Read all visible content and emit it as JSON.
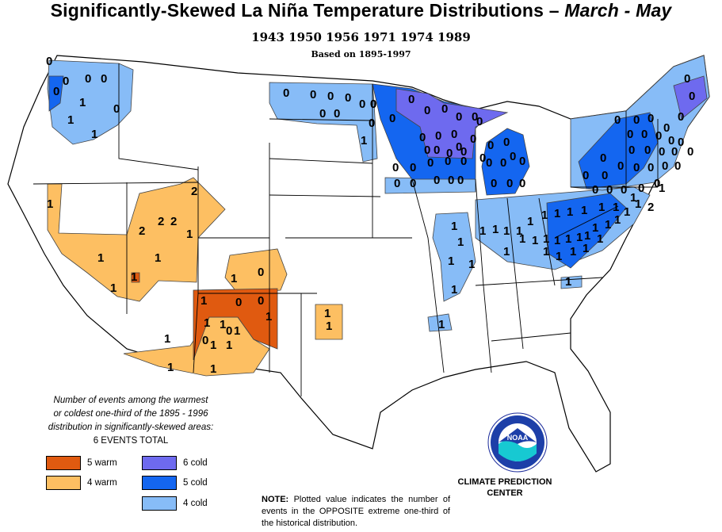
{
  "header": {
    "title_main": "Significantly-Skewed La Niña Temperature Distributions  –",
    "title_season": "March - May",
    "years": "1943 1950 1956 1971 1974 1989",
    "basis": "Based on 1895-1997"
  },
  "legend": {
    "caption_lines": [
      "Number of events among the warmest",
      "or coldest one-third of the 1895 - 1996",
      "distribution in significantly-skewed areas:"
    ],
    "total": "6  EVENTS TOTAL",
    "items": [
      {
        "label": "5 warm",
        "color": "#e05a10"
      },
      {
        "label": "4 warm",
        "color": "#fdbf62"
      },
      {
        "label": "6 cold",
        "color": "#6e6aef"
      },
      {
        "label": "5 cold",
        "color": "#1466f0"
      },
      {
        "label": "4 cold",
        "color": "#87bcf7"
      }
    ]
  },
  "credit": {
    "line1": "CLIMATE PREDICTION",
    "line2": "CENTER",
    "logo_text": "NOAA"
  },
  "note": {
    "label": "NOTE:",
    "text": " Plotted value indicates the number of events in the OPPOSITE extreme one-third of the historical distribution."
  },
  "map": {
    "colors": {
      "land": "#ffffff",
      "border": "#000000",
      "division_border": "#6b6b6b"
    },
    "values": [
      {
        "v": "0",
        "cat": "4 cold"
      },
      {
        "v": "1",
        "cat": "4 cold"
      },
      {
        "v": "0",
        "cat": "5 cold"
      },
      {
        "v": "0",
        "cat": "6 cold"
      },
      {
        "v": "1",
        "cat": "4 warm"
      },
      {
        "v": "2",
        "cat": "4 warm"
      },
      {
        "v": "1",
        "cat": "5 warm"
      },
      {
        "v": "0",
        "cat": "5 warm"
      }
    ],
    "labels": {
      "pnw": [
        "0",
        "0",
        "0",
        "0",
        "0",
        "1",
        "0",
        "1",
        "1"
      ],
      "north_plains": [
        "0",
        "0",
        "0",
        "0",
        "0",
        "0",
        "0",
        "0",
        "0",
        "1"
      ],
      "great_lakes": [
        "0",
        "0",
        "0",
        "0",
        "0",
        "0",
        "0",
        "0",
        "0",
        "0",
        "0",
        "0",
        "0",
        "0",
        "0",
        "0",
        "0",
        "0",
        "0",
        "0",
        "0",
        "0",
        "0",
        "0",
        "0",
        "0",
        "0",
        "0",
        "0",
        "0",
        "0",
        "0",
        "0",
        "0",
        "0",
        "0",
        "0"
      ],
      "northeast": [
        "0",
        "0",
        "0",
        "0",
        "0",
        "0",
        "0",
        "0",
        "0",
        "0",
        "0",
        "0",
        "0",
        "0",
        "0",
        "0",
        "0",
        "0",
        "0",
        "0",
        "0",
        "0",
        "0",
        "0",
        "0",
        "0",
        "0",
        "0",
        "0",
        "0",
        "1",
        "1",
        "2",
        "1",
        "1",
        "1"
      ],
      "ohio_valley": [
        "1",
        "1",
        "1",
        "1",
        "1",
        "1",
        "1",
        "1",
        "1",
        "1",
        "1",
        "1",
        "1",
        "1",
        "1",
        "1",
        "1",
        "1",
        "1",
        "1",
        "1",
        "1",
        "1",
        "1",
        "1",
        "1"
      ],
      "mississippi": [
        "1",
        "1",
        "1",
        "1",
        "1",
        "1",
        "1"
      ],
      "great_basin": [
        "1",
        "2",
        "2",
        "2",
        "2",
        "1",
        "1",
        "1",
        "1",
        "1",
        "1",
        "0"
      ],
      "southwest_warm5": [
        "1",
        "0",
        "0",
        "1",
        "1",
        "0"
      ],
      "southwest_warm4": [
        "1",
        "1",
        "0",
        "1",
        "1",
        "1",
        "1",
        "1"
      ],
      "texas": [
        "1",
        "1"
      ]
    }
  }
}
